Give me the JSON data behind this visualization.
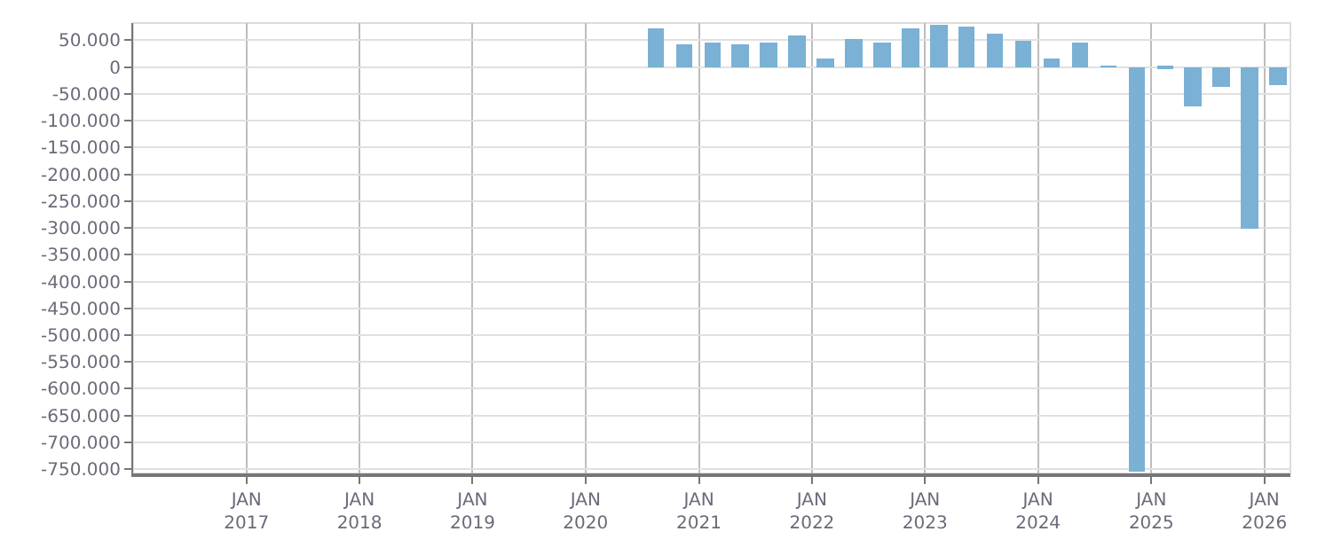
{
  "chart_data": {
    "type": "bar",
    "x": [
      "2020-08-15",
      "2020-11-15",
      "2021-02-15",
      "2021-05-15",
      "2021-08-15",
      "2021-11-15",
      "2022-02-15",
      "2022-05-15",
      "2022-08-15",
      "2022-11-15",
      "2023-02-15",
      "2023-05-15",
      "2023-08-15",
      "2023-11-15",
      "2024-02-15",
      "2024-05-15",
      "2024-08-15",
      "2024-11-15",
      "2025-02-15",
      "2025-05-15",
      "2025-08-15",
      "2025-11-15",
      "2026-02-15"
    ],
    "series": [
      {
        "color": "#7ab1d4",
        "values": [
          72000,
          41000,
          47000,
          41000,
          47000,
          60000,
          16000,
          53000,
          47000,
          72000,
          79000,
          75000,
          63000,
          50000,
          16000,
          44000,
          2000,
          -755000,
          -2000,
          -72000,
          -38000,
          -300000,
          -35000
        ]
      }
    ],
    "xlim": [
      "2016-01-01",
      "2026-03-26"
    ],
    "xticks": [
      {
        "value": "2017-01-01",
        "label": "JAN\n2017"
      },
      {
        "value": "2018-01-01",
        "label": "JAN\n2018"
      },
      {
        "value": "2019-01-01",
        "label": "JAN\n2019"
      },
      {
        "value": "2020-01-01",
        "label": "JAN\n2020"
      },
      {
        "value": "2021-01-01",
        "label": "JAN\n2021"
      },
      {
        "value": "2022-01-01",
        "label": "JAN\n2022"
      },
      {
        "value": "2023-01-01",
        "label": "JAN\n2023"
      },
      {
        "value": "2024-01-01",
        "label": "JAN\n2024"
      },
      {
        "value": "2025-01-01",
        "label": "JAN\n2025"
      },
      {
        "value": "2026-01-01",
        "label": "JAN\n2026"
      }
    ],
    "ylim": [
      -758000,
      82000
    ],
    "yticks": [
      {
        "value": 50000,
        "label": "50.000"
      },
      0,
      {
        "value": -50000,
        "label": "-50.000"
      },
      {
        "value": -100000,
        "label": "-100.000"
      },
      {
        "value": -150000,
        "label": "-150.000"
      },
      {
        "value": -200000,
        "label": "-200.000"
      },
      {
        "value": -250000,
        "label": "-250.000"
      },
      {
        "value": -300000,
        "label": "-300.000"
      },
      {
        "value": -350000,
        "label": "-350.000"
      },
      {
        "value": -400000,
        "label": "-400.000"
      },
      {
        "value": -450000,
        "label": "-450.000"
      },
      {
        "value": -500000,
        "label": "-500.000"
      },
      {
        "value": -550000,
        "label": "-550.000"
      },
      {
        "value": -600000,
        "label": "-600.000"
      },
      {
        "value": -650000,
        "label": "-650.000"
      },
      {
        "value": -700000,
        "label": "-700.000"
      },
      {
        "value": -750000,
        "label": "-750.000"
      }
    ],
    "grid": true
  }
}
